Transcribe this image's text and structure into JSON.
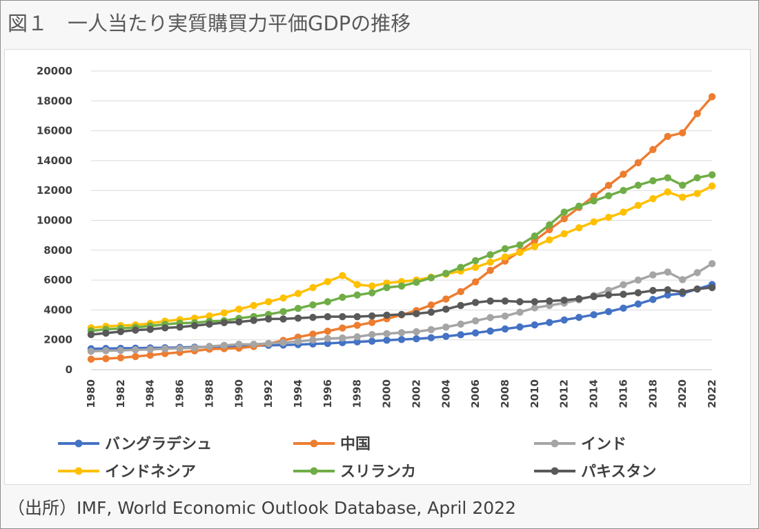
{
  "figure": {
    "title": "図１　一人当たり実質購買力平価GDPの推移",
    "source": "（出所）IMF, World Economic Outlook Database, April 2022"
  },
  "chart_data": {
    "type": "line",
    "title": "",
    "xlabel": "",
    "ylabel": "",
    "ylim": [
      0,
      20000
    ],
    "yticks": [
      0,
      2000,
      4000,
      6000,
      8000,
      10000,
      12000,
      14000,
      16000,
      18000,
      20000
    ],
    "ytick_labels": [
      "0",
      "2000",
      "4000",
      "6000",
      "8000",
      "10000",
      "12000",
      "14000",
      "16000",
      "18000",
      "20000"
    ],
    "xticks": [
      1980,
      1982,
      1984,
      1986,
      1988,
      1990,
      1992,
      1994,
      1996,
      1998,
      2000,
      2002,
      2004,
      2006,
      2008,
      2010,
      2012,
      2014,
      2016,
      2018,
      2020,
      2022
    ],
    "xtick_labels": [
      "1980",
      "1982",
      "1984",
      "1986",
      "1988",
      "1990",
      "1992",
      "1994",
      "1996",
      "1998",
      "2000",
      "2002",
      "2004",
      "2006",
      "2008",
      "2010",
      "2012",
      "2014",
      "2016",
      "2018",
      "2020",
      "2022"
    ],
    "grid": true,
    "legend_position": "bottom",
    "x": [
      1980,
      1981,
      1982,
      1983,
      1984,
      1985,
      1986,
      1987,
      1988,
      1989,
      1990,
      1991,
      1992,
      1993,
      1994,
      1995,
      1996,
      1997,
      1998,
      1999,
      2000,
      2001,
      2002,
      2003,
      2004,
      2005,
      2006,
      2007,
      2008,
      2009,
      2010,
      2011,
      2012,
      2013,
      2014,
      2015,
      2016,
      2017,
      2018,
      2019,
      2020,
      2021,
      2022
    ],
    "series": [
      {
        "name": "バングラデシュ",
        "color": "#4472c4",
        "values": [
          1400,
          1420,
          1430,
          1440,
          1460,
          1470,
          1490,
          1510,
          1530,
          1550,
          1580,
          1600,
          1630,
          1650,
          1680,
          1720,
          1760,
          1810,
          1860,
          1910,
          1970,
          2020,
          2070,
          2140,
          2230,
          2340,
          2460,
          2590,
          2730,
          2860,
          3000,
          3160,
          3330,
          3500,
          3680,
          3890,
          4120,
          4400,
          4700,
          5000,
          5100,
          5400,
          5700
        ]
      },
      {
        "name": "中国",
        "color": "#ed7d31",
        "values": [
          700,
          740,
          800,
          880,
          970,
          1080,
          1160,
          1260,
          1370,
          1410,
          1440,
          1550,
          1740,
          1960,
          2180,
          2380,
          2580,
          2790,
          2970,
          3160,
          3410,
          3670,
          3960,
          4330,
          4730,
          5230,
          5880,
          6650,
          7270,
          7920,
          8640,
          9380,
          10110,
          10860,
          11620,
          12340,
          13090,
          13860,
          14740,
          15620,
          15860,
          17150,
          18280
        ]
      },
      {
        "name": "インド",
        "color": "#a5a5a5",
        "values": [
          1230,
          1270,
          1290,
          1330,
          1360,
          1400,
          1430,
          1460,
          1560,
          1630,
          1700,
          1700,
          1760,
          1810,
          1890,
          1990,
          2090,
          2120,
          2200,
          2350,
          2410,
          2480,
          2540,
          2680,
          2850,
          3050,
          3270,
          3490,
          3590,
          3850,
          4140,
          4300,
          4460,
          4680,
          4960,
          5310,
          5690,
          6000,
          6350,
          6540,
          6030,
          6500,
          7100
        ]
      },
      {
        "name": "インドネシア",
        "color": "#ffc000",
        "values": [
          2800,
          2900,
          2950,
          3000,
          3100,
          3250,
          3350,
          3450,
          3600,
          3800,
          4050,
          4300,
          4550,
          4800,
          5100,
          5500,
          5900,
          6300,
          5700,
          5600,
          5800,
          5900,
          6000,
          6200,
          6400,
          6600,
          6850,
          7200,
          7550,
          7850,
          8250,
          8700,
          9100,
          9500,
          9900,
          10200,
          10550,
          11000,
          11450,
          11900,
          11550,
          11800,
          12300
        ]
      },
      {
        "name": "スリランカ",
        "color": "#70ad47",
        "values": [
          2600,
          2700,
          2760,
          2830,
          2930,
          3040,
          3120,
          3140,
          3240,
          3280,
          3440,
          3560,
          3700,
          3890,
          4100,
          4340,
          4550,
          4850,
          5000,
          5150,
          5500,
          5600,
          5850,
          6150,
          6450,
          6850,
          7300,
          7700,
          8100,
          8350,
          8950,
          9700,
          10550,
          10950,
          11300,
          11650,
          12000,
          12350,
          12650,
          12850,
          12350,
          12850,
          13050
        ]
      },
      {
        "name": "パキスタン",
        "color": "#595959",
        "values": [
          2350,
          2450,
          2550,
          2650,
          2700,
          2800,
          2850,
          2950,
          3050,
          3150,
          3200,
          3300,
          3400,
          3400,
          3450,
          3500,
          3550,
          3550,
          3550,
          3600,
          3650,
          3700,
          3750,
          3850,
          4050,
          4300,
          4500,
          4600,
          4600,
          4550,
          4550,
          4600,
          4650,
          4750,
          4900,
          5000,
          5050,
          5150,
          5300,
          5350,
          5200,
          5400,
          5500
        ]
      }
    ]
  }
}
